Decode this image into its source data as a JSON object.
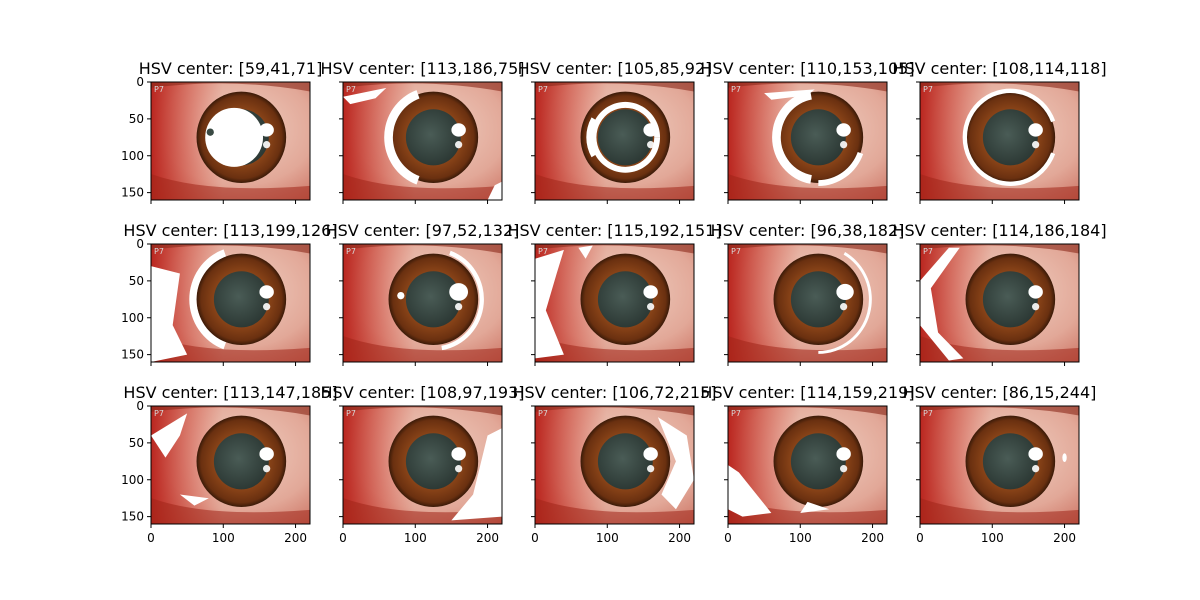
{
  "chart_data": {
    "type": "image-grid",
    "rows": 3,
    "cols": 5,
    "image_size": {
      "width": 220,
      "height": 160
    },
    "x_ticks": [
      0,
      100,
      200
    ],
    "y_ticks": [
      0,
      50,
      100,
      150
    ],
    "tick_labels_x_on_row": 2,
    "tick_labels_y_on_col": 0,
    "corner_label": "P7",
    "mask_color": "#ffffff",
    "panels": [
      {
        "title": "HSV center: [59,41,71]",
        "hsv": [
          59,
          41,
          71
        ],
        "mask": "pupil"
      },
      {
        "title": "HSV center: [113,186,75]",
        "hsv": [
          113,
          186,
          75
        ],
        "mask": "left-crescent"
      },
      {
        "title": "HSV center: [105,85,92]",
        "hsv": [
          105,
          85,
          92
        ],
        "mask": "pupil-ring"
      },
      {
        "title": "HSV center: [110,153,105]",
        "hsv": [
          110,
          153,
          105
        ],
        "mask": "iris-crescent"
      },
      {
        "title": "HSV center: [108,114,118]",
        "hsv": [
          108,
          114,
          118
        ],
        "mask": "iris-edge"
      },
      {
        "title": "HSV center: [113,199,126]",
        "hsv": [
          113,
          199,
          126
        ],
        "mask": "left-sclera"
      },
      {
        "title": "HSV center: [97,52,132]",
        "hsv": [
          97,
          52,
          132
        ],
        "mask": "right-ring"
      },
      {
        "title": "HSV center: [115,192,151]",
        "hsv": [
          115,
          192,
          151
        ],
        "mask": "left-patches"
      },
      {
        "title": "HSV center: [96,38,182]",
        "hsv": [
          96,
          38,
          182
        ],
        "mask": "right-ring-thin"
      },
      {
        "title": "HSV center: [114,186,184]",
        "hsv": [
          114,
          186,
          184
        ],
        "mask": "left-stripes"
      },
      {
        "title": "HSV center: [113,147,185]",
        "hsv": [
          113,
          147,
          185
        ],
        "mask": "top-left-sclera"
      },
      {
        "title": "HSV center: [108,97,193]",
        "hsv": [
          108,
          97,
          193
        ],
        "mask": "bottom-right-sclera"
      },
      {
        "title": "HSV center: [106,72,215]",
        "hsv": [
          106,
          72,
          215
        ],
        "mask": "right-sclera"
      },
      {
        "title": "HSV center: [114,159,219]",
        "hsv": [
          114,
          159,
          219
        ],
        "mask": "bottom-left-sclera"
      },
      {
        "title": "HSV center: [86,15,244]",
        "hsv": [
          86,
          15,
          244
        ],
        "mask": "reflection"
      }
    ]
  },
  "colors": {
    "sclera": "#e8b8a8",
    "vessel_red": "#c8281e",
    "iris": "#7a3a14",
    "iris_dark": "#4a200a",
    "pupil": "#3a4a44",
    "reflection": "#ffffff"
  }
}
